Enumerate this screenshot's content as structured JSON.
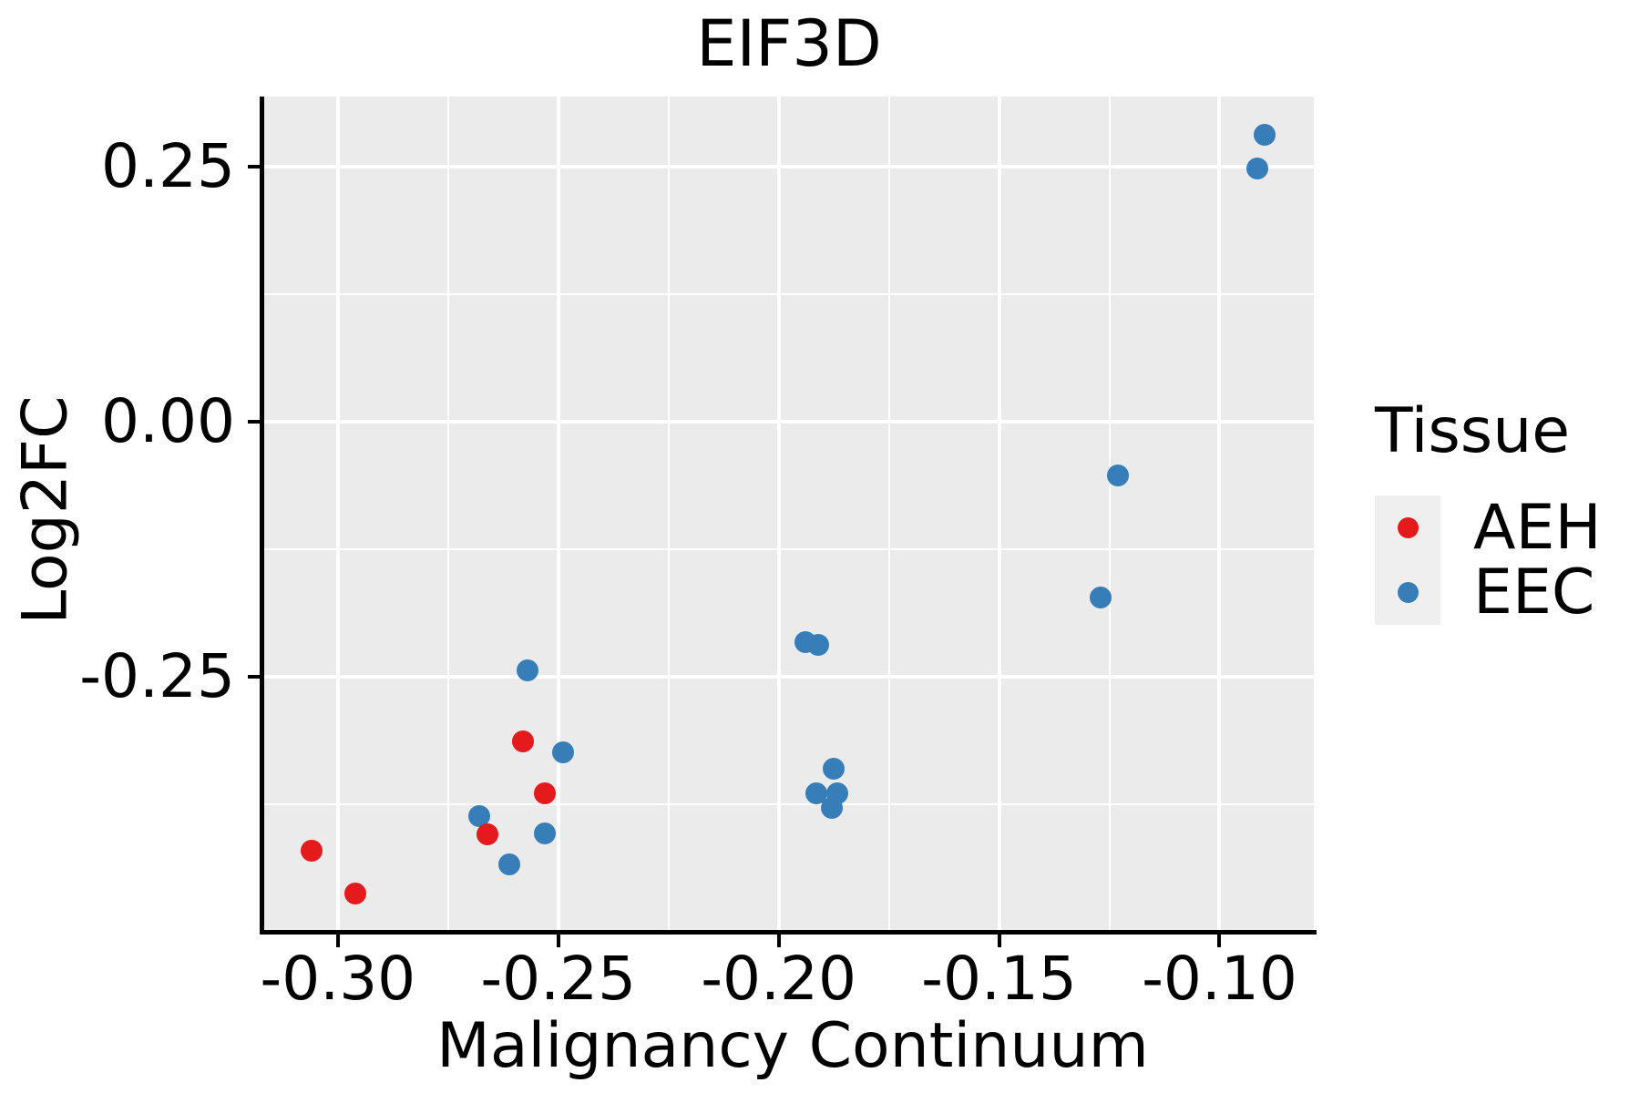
{
  "chart_data": {
    "type": "scatter",
    "title": "EIF3D",
    "xlabel": "Malignancy Continuum",
    "ylabel": "Log2FC",
    "xlim": [
      -0.3167,
      -0.0786
    ],
    "ylim": [
      -0.498,
      0.3187
    ],
    "grid": true,
    "legend_position": "right",
    "x_major_ticks": [
      {
        "value": -0.3,
        "label": "-0.30"
      },
      {
        "value": -0.25,
        "label": "-0.25"
      },
      {
        "value": -0.2,
        "label": "-0.20"
      },
      {
        "value": -0.15,
        "label": "-0.15"
      },
      {
        "value": -0.1,
        "label": "-0.10"
      }
    ],
    "x_minor_ticks": [
      -0.275,
      -0.225,
      -0.175,
      -0.125
    ],
    "y_major_ticks": [
      {
        "value": 0.25,
        "label": "0.25"
      },
      {
        "value": 0.0,
        "label": "0.00"
      },
      {
        "value": -0.25,
        "label": "-0.25"
      }
    ],
    "y_minor_ticks": [
      0.125,
      -0.125,
      -0.375
    ],
    "legend": {
      "title": "Tissue",
      "entries": [
        {
          "label": "AEH",
          "color": "#E41A1C"
        },
        {
          "label": "EEC",
          "color": "#377EB8"
        }
      ]
    },
    "colors": {
      "panel_background": "#EBEBEB",
      "gridline": "#FFFFFF",
      "axis_line": "#000000",
      "legend_key_background": "#EFEFEF",
      "aeh": "#E41A1C",
      "eec": "#377EB8"
    },
    "series": [
      {
        "name": "AEH",
        "color": "#E41A1C",
        "points": [
          [
            -0.306,
            -0.42
          ],
          [
            -0.296,
            -0.462
          ],
          [
            -0.266,
            -0.404
          ],
          [
            -0.258,
            -0.313
          ],
          [
            -0.253,
            -0.364
          ]
        ]
      },
      {
        "name": "EEC",
        "color": "#377EB8",
        "points": [
          [
            -0.268,
            -0.386
          ],
          [
            -0.261,
            -0.434
          ],
          [
            -0.257,
            -0.244
          ],
          [
            -0.253,
            -0.403
          ],
          [
            -0.249,
            -0.324
          ],
          [
            -0.194,
            -0.216
          ],
          [
            -0.191,
            -0.219
          ],
          [
            -0.1915,
            -0.364
          ],
          [
            -0.1875,
            -0.34
          ],
          [
            -0.1866,
            -0.364
          ],
          [
            -0.188,
            -0.378
          ],
          [
            -0.127,
            -0.172
          ],
          [
            -0.123,
            -0.053
          ],
          [
            -0.0915,
            0.248
          ],
          [
            -0.0897,
            0.281
          ]
        ]
      }
    ]
  }
}
